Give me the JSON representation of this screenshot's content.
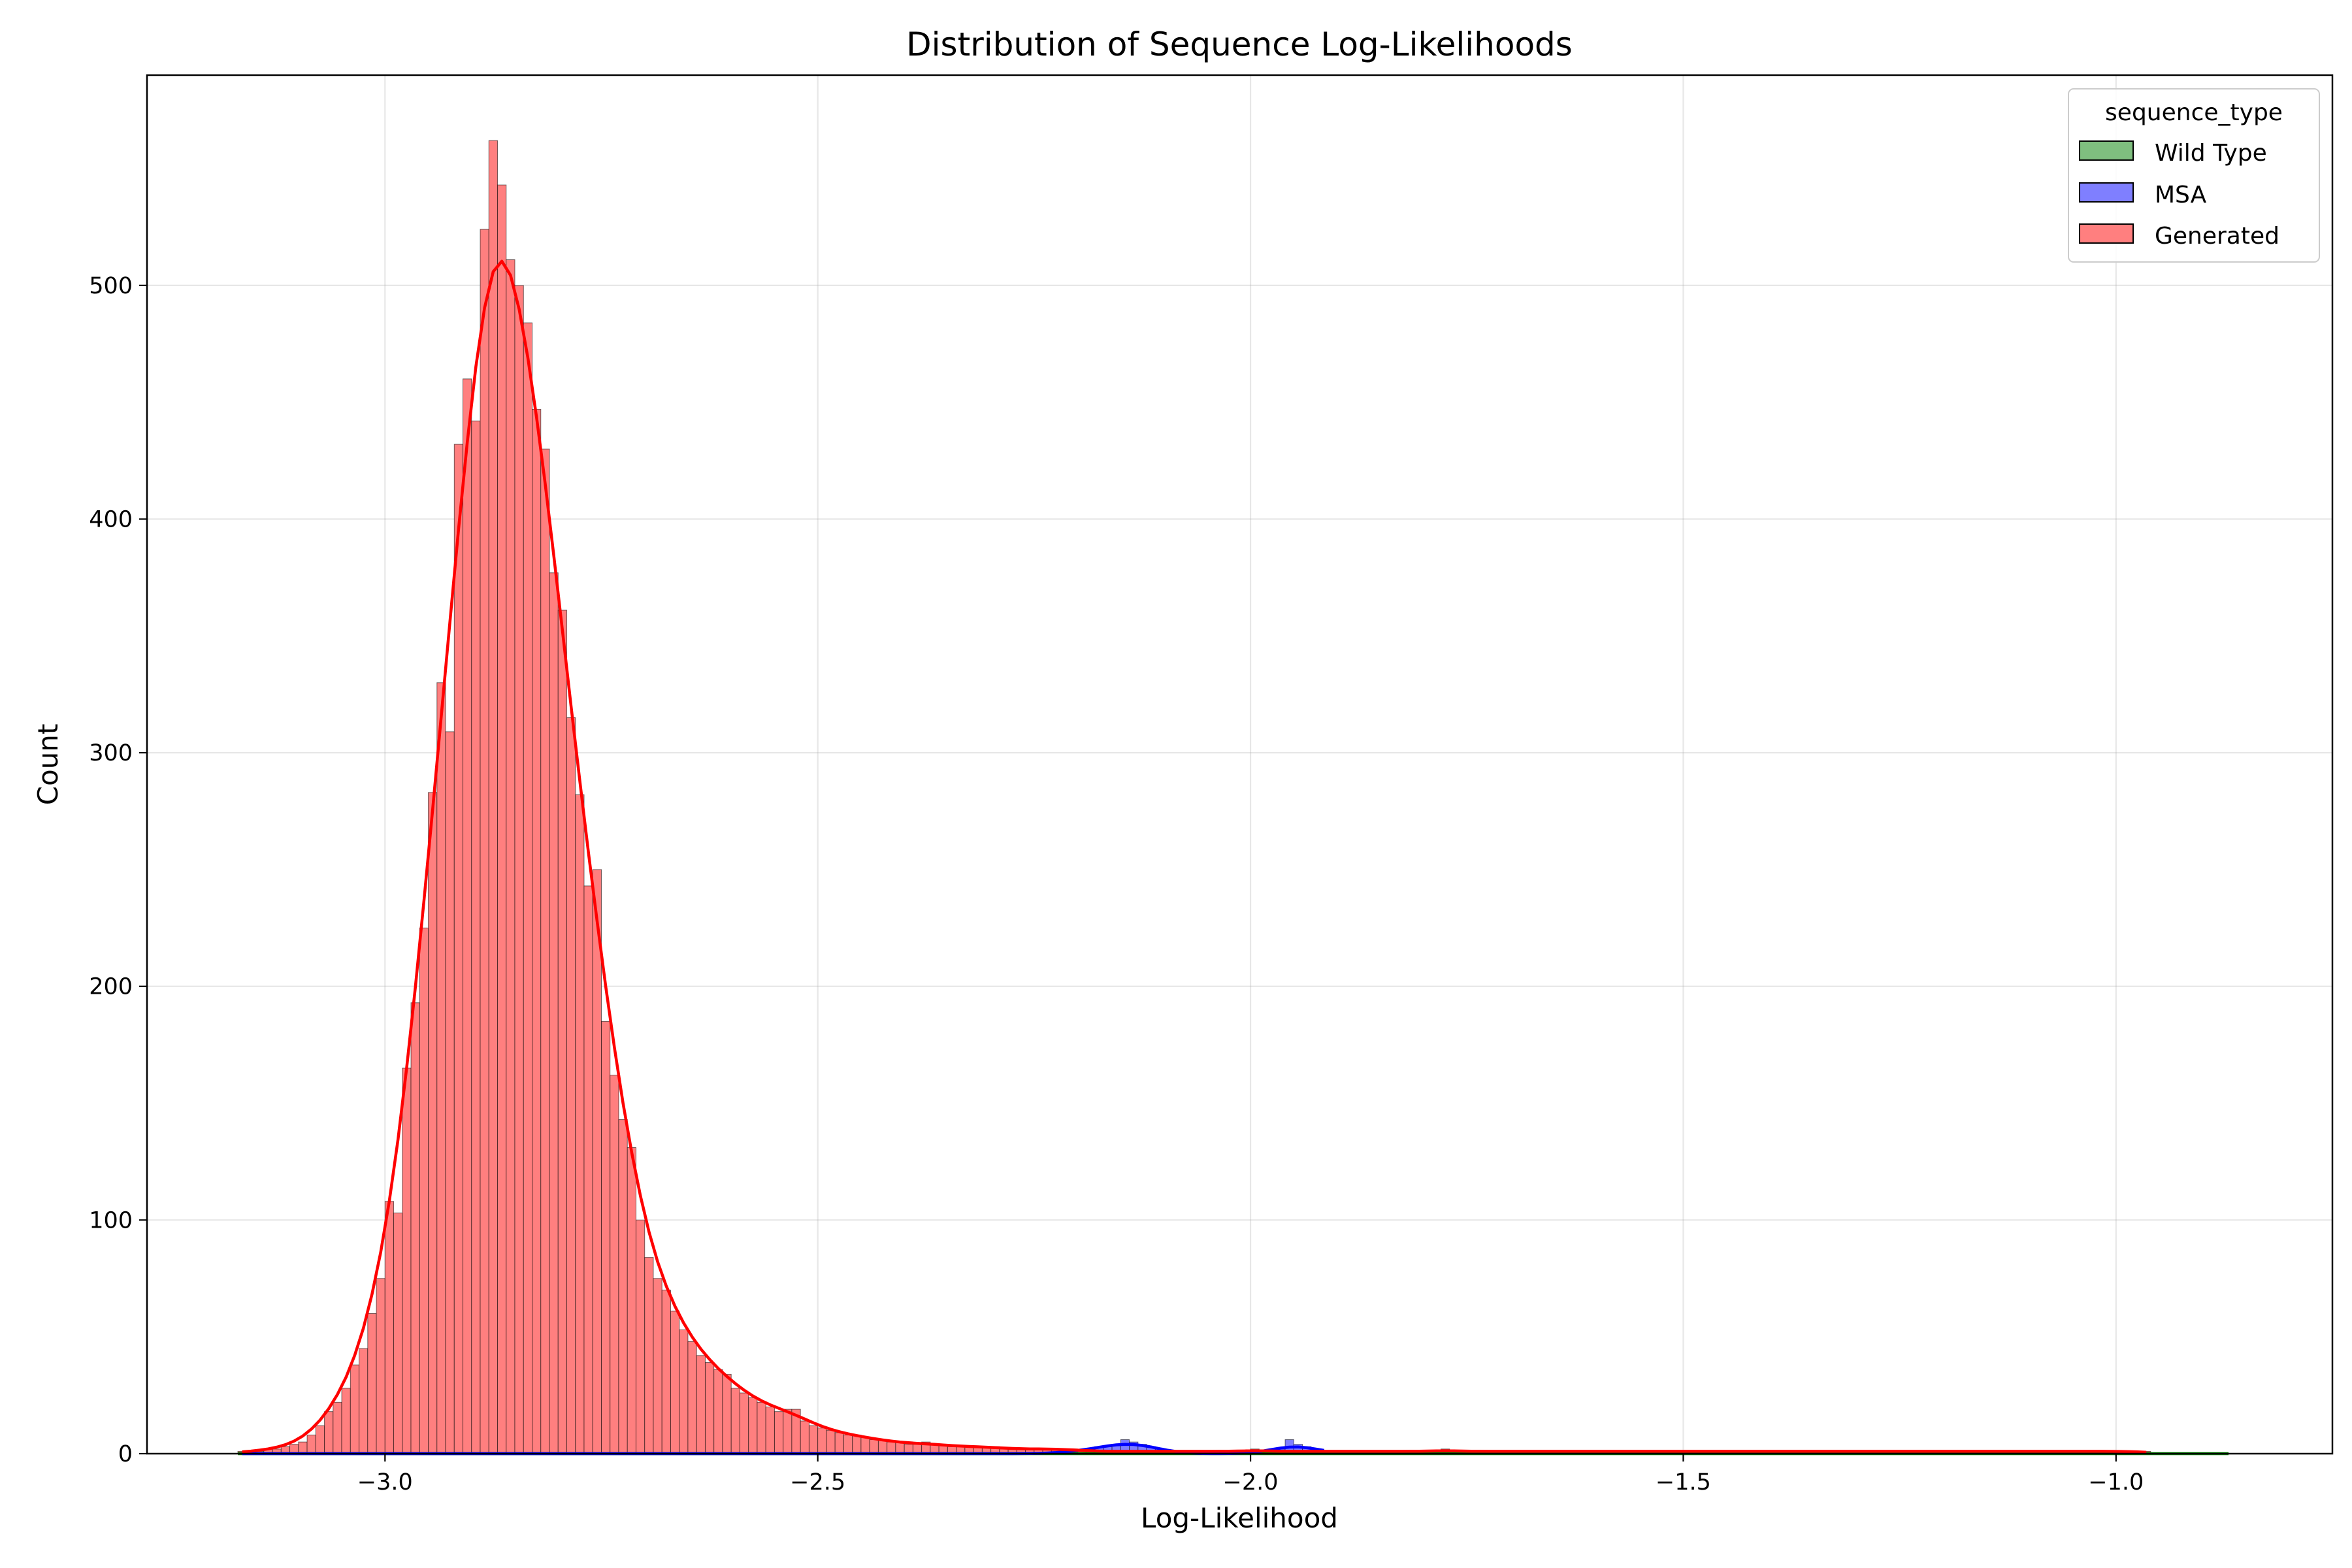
{
  "chart_data": {
    "type": "histogram",
    "title": "Distribution of Sequence Log-Likelihoods",
    "xlabel": "Log-Likelihood",
    "ylabel": "Count",
    "xlim": [
      -3.275,
      -0.75
    ],
    "ylim": [
      0,
      590
    ],
    "xticks": [
      -3.0,
      -2.5,
      -2.0,
      -1.5,
      -1.0
    ],
    "xtick_labels": [
      "−3.0",
      "−2.5",
      "−2.0",
      "−1.5",
      "−1.0"
    ],
    "yticks": [
      0,
      100,
      200,
      300,
      400,
      500
    ],
    "ytick_labels": [
      "0",
      "100",
      "200",
      "300",
      "400",
      "500"
    ],
    "grid": true,
    "legend": {
      "title": "sequence_type",
      "position": "upper right",
      "entries": [
        "Wild Type",
        "MSA",
        "Generated"
      ]
    },
    "bin_start": -3.17,
    "bin_width": 0.01,
    "series": [
      {
        "name": "Wild Type",
        "face_color": "#7fbf7f",
        "edge_color": "#000000",
        "kde_color": "#008000",
        "counts": []
      },
      {
        "name": "MSA",
        "face_color": "#7f7fff",
        "edge_color": "#000000",
        "kde_color": "#0000ff",
        "counts": [
          0,
          0,
          0,
          0,
          0,
          0,
          0,
          0,
          0,
          0,
          0,
          0,
          0,
          0,
          0,
          0,
          0,
          0,
          0,
          0,
          0,
          0,
          0,
          0,
          0,
          0,
          0,
          0,
          0,
          0,
          0,
          0,
          0,
          0,
          0,
          0,
          0,
          0,
          0,
          0,
          0,
          0,
          0,
          0,
          0,
          0,
          0,
          0,
          0,
          0,
          0,
          0,
          0,
          0,
          0,
          0,
          0,
          0,
          0,
          0,
          0,
          0,
          0,
          0,
          0,
          0,
          0,
          0,
          0,
          0,
          0,
          0,
          0,
          0,
          0,
          0,
          0,
          0,
          0,
          0,
          0,
          0,
          0,
          0,
          0,
          0,
          0,
          0,
          0,
          0,
          0,
          0,
          0,
          0,
          0,
          1,
          1,
          1,
          2,
          3,
          3,
          4,
          6,
          5,
          4,
          3,
          2,
          1,
          0,
          0,
          0,
          0,
          0,
          0,
          0,
          0,
          0,
          0,
          1,
          1,
          2,
          6,
          4,
          3,
          2,
          1
        ]
      },
      {
        "name": "Generated",
        "face_color": "#ff7f7f",
        "edge_color": "#000000",
        "kde_color": "#ff0000",
        "counts": [
          1,
          1,
          1,
          2,
          2,
          3,
          4,
          5,
          8,
          12,
          18,
          22,
          28,
          38,
          45,
          60,
          75,
          108,
          103,
          165,
          193,
          225,
          283,
          330,
          309,
          432,
          460,
          442,
          524,
          562,
          543,
          511,
          500,
          484,
          447,
          430,
          377,
          361,
          315,
          282,
          243,
          250,
          185,
          162,
          143,
          131,
          100,
          84,
          75,
          70,
          61,
          53,
          48,
          42,
          39,
          36,
          34,
          28,
          26,
          24,
          22,
          20,
          18,
          19,
          19,
          14,
          12,
          11,
          10,
          9,
          8,
          8,
          7,
          6,
          6,
          5,
          5,
          4,
          4,
          5,
          4,
          4,
          3,
          3,
          3,
          3,
          3,
          3,
          2,
          2,
          2,
          2,
          2,
          2,
          2,
          2,
          2,
          1,
          1,
          1,
          1,
          1,
          1,
          1,
          1,
          1,
          1,
          1,
          1,
          1,
          1,
          1,
          1,
          1,
          1,
          1,
          1,
          2,
          1,
          1,
          1,
          1,
          1,
          1,
          1,
          1,
          1,
          1,
          1,
          1,
          1,
          1,
          1,
          1,
          1,
          1,
          1,
          1,
          1,
          2,
          1,
          1,
          1,
          1,
          1,
          1,
          1,
          1,
          1,
          1,
          1,
          1,
          1,
          1,
          1,
          1,
          1,
          1,
          1,
          1,
          1,
          1,
          1,
          1,
          1,
          1,
          1,
          1,
          1,
          1,
          1,
          1,
          1,
          1,
          1,
          1,
          1,
          1,
          1,
          1,
          1,
          1,
          1,
          1,
          1,
          1,
          1,
          1,
          1,
          1,
          1,
          1,
          1,
          1,
          1,
          1,
          1,
          1,
          1,
          1,
          1,
          1,
          1,
          1,
          1,
          1,
          1,
          1,
          1,
          1,
          1,
          1,
          1,
          1,
          1,
          1,
          1,
          1,
          1,
          1,
          1
        ]
      }
    ]
  }
}
